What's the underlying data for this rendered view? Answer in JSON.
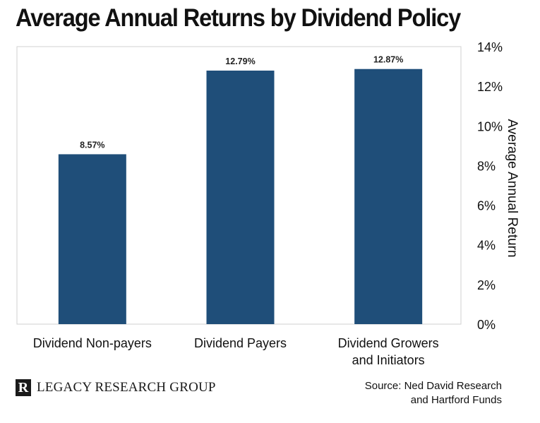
{
  "chart_data": {
    "type": "bar",
    "title": "Average Annual Returns by Dividend Policy",
    "ylabel": "Average Annual Return",
    "xlabel": "",
    "categories": [
      "Dividend Non-payers",
      "Dividend Payers",
      "Dividend Growers and Initiators"
    ],
    "category_lines": [
      [
        "Dividend Non-payers"
      ],
      [
        "Dividend Payers"
      ],
      [
        "Dividend Growers",
        "and Initiators"
      ]
    ],
    "values": [
      8.57,
      12.79,
      12.87
    ],
    "data_labels": [
      "8.57%",
      "12.79%",
      "12.87%"
    ],
    "ylim": [
      0,
      14
    ],
    "yticks": [
      0,
      2,
      4,
      6,
      8,
      10,
      12,
      14
    ],
    "ytick_labels": [
      "0%",
      "2%",
      "4%",
      "6%",
      "8%",
      "10%",
      "12%",
      "14%"
    ],
    "y_axis_side": "right",
    "grid": false,
    "bar_color": "#1f4e79"
  },
  "footer": {
    "logo_mark": "R",
    "logo_text": "LEGACY RESEARCH GROUP",
    "source_line1": "Source: Ned David Research",
    "source_line2": "and Hartford Funds"
  }
}
